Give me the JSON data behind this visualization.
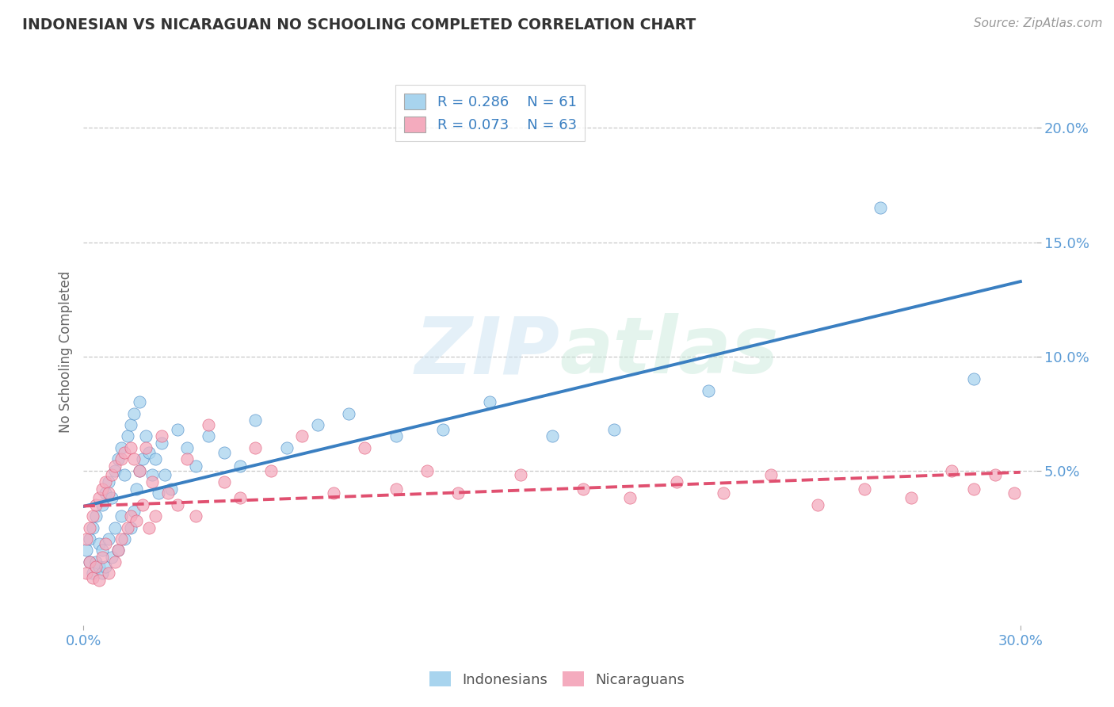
{
  "title": "INDONESIAN VS NICARAGUAN NO SCHOOLING COMPLETED CORRELATION CHART",
  "source": "Source: ZipAtlas.com",
  "ylabel": "No Schooling Completed",
  "xlim": [
    0.0,
    0.305
  ],
  "ylim": [
    -0.018,
    0.222
  ],
  "xticks": [
    0.0,
    0.3
  ],
  "xtick_labels": [
    "0.0%",
    "30.0%"
  ],
  "yticks": [
    0.05,
    0.1,
    0.15,
    0.2
  ],
  "ytick_labels": [
    "5.0%",
    "10.0%",
    "15.0%",
    "20.0%"
  ],
  "legend_r1": "R = 0.286",
  "legend_n1": "N = 61",
  "legend_r2": "R = 0.073",
  "legend_n2": "N = 63",
  "color_indonesian": "#A8D4EE",
  "color_nicaraguan": "#F4ABBE",
  "color_trend_indonesian": "#3A7FC1",
  "color_trend_nicaraguan": "#E05070",
  "color_axis_labels": "#5B9BD5",
  "color_title": "#333333",
  "color_source": "#999999",
  "background": "#FFFFFF",
  "indonesian_x": [
    0.001,
    0.002,
    0.002,
    0.003,
    0.003,
    0.004,
    0.004,
    0.005,
    0.005,
    0.006,
    0.006,
    0.006,
    0.007,
    0.007,
    0.008,
    0.008,
    0.009,
    0.009,
    0.01,
    0.01,
    0.011,
    0.011,
    0.012,
    0.012,
    0.013,
    0.013,
    0.014,
    0.015,
    0.015,
    0.016,
    0.016,
    0.017,
    0.018,
    0.018,
    0.019,
    0.02,
    0.021,
    0.022,
    0.023,
    0.024,
    0.025,
    0.026,
    0.028,
    0.03,
    0.033,
    0.036,
    0.04,
    0.045,
    0.05,
    0.055,
    0.065,
    0.075,
    0.085,
    0.1,
    0.115,
    0.13,
    0.15,
    0.17,
    0.2,
    0.255,
    0.285
  ],
  "indonesian_y": [
    0.015,
    0.01,
    0.02,
    0.005,
    0.025,
    0.01,
    0.03,
    0.008,
    0.018,
    0.005,
    0.015,
    0.035,
    0.008,
    0.04,
    0.02,
    0.045,
    0.012,
    0.038,
    0.025,
    0.05,
    0.015,
    0.055,
    0.03,
    0.06,
    0.02,
    0.048,
    0.065,
    0.025,
    0.07,
    0.032,
    0.075,
    0.042,
    0.05,
    0.08,
    0.055,
    0.065,
    0.058,
    0.048,
    0.055,
    0.04,
    0.062,
    0.048,
    0.042,
    0.068,
    0.06,
    0.052,
    0.065,
    0.058,
    0.052,
    0.072,
    0.06,
    0.07,
    0.075,
    0.065,
    0.068,
    0.08,
    0.065,
    0.068,
    0.085,
    0.165,
    0.09
  ],
  "nicaraguan_x": [
    0.001,
    0.001,
    0.002,
    0.002,
    0.003,
    0.003,
    0.004,
    0.004,
    0.005,
    0.005,
    0.006,
    0.006,
    0.007,
    0.007,
    0.008,
    0.008,
    0.009,
    0.01,
    0.01,
    0.011,
    0.012,
    0.012,
    0.013,
    0.014,
    0.015,
    0.015,
    0.016,
    0.017,
    0.018,
    0.019,
    0.02,
    0.021,
    0.022,
    0.023,
    0.025,
    0.027,
    0.03,
    0.033,
    0.036,
    0.04,
    0.045,
    0.05,
    0.055,
    0.06,
    0.07,
    0.08,
    0.09,
    0.1,
    0.11,
    0.12,
    0.14,
    0.16,
    0.175,
    0.19,
    0.205,
    0.22,
    0.235,
    0.25,
    0.265,
    0.278,
    0.285,
    0.292,
    0.298
  ],
  "nicaraguan_y": [
    0.02,
    0.005,
    0.025,
    0.01,
    0.03,
    0.003,
    0.035,
    0.008,
    0.038,
    0.002,
    0.042,
    0.012,
    0.045,
    0.018,
    0.005,
    0.04,
    0.048,
    0.01,
    0.052,
    0.015,
    0.055,
    0.02,
    0.058,
    0.025,
    0.06,
    0.03,
    0.055,
    0.028,
    0.05,
    0.035,
    0.06,
    0.025,
    0.045,
    0.03,
    0.065,
    0.04,
    0.035,
    0.055,
    0.03,
    0.07,
    0.045,
    0.038,
    0.06,
    0.05,
    0.065,
    0.04,
    0.06,
    0.042,
    0.05,
    0.04,
    0.048,
    0.042,
    0.038,
    0.045,
    0.04,
    0.048,
    0.035,
    0.042,
    0.038,
    0.05,
    0.042,
    0.048,
    0.04
  ]
}
